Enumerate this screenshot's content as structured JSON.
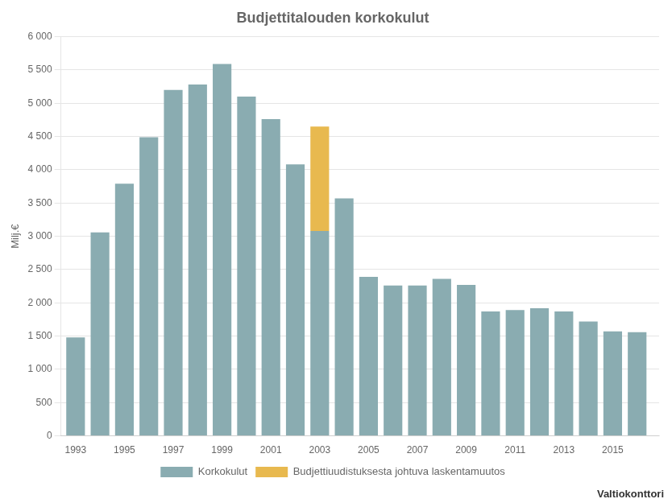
{
  "chart_data": {
    "type": "bar",
    "title": "Budjettitalouden korkokulut",
    "ylabel": "Milj.€",
    "annotations": [
      "Valtiokonttori"
    ],
    "x": [
      1993,
      1994,
      1995,
      1996,
      1997,
      1998,
      1999,
      2000,
      2001,
      2002,
      2003,
      2004,
      2005,
      2006,
      2007,
      2008,
      2009,
      2010,
      2011,
      2012,
      2013,
      2014,
      2015,
      2016
    ],
    "series": [
      {
        "name": "Korkokulut",
        "color": "#8aacb1",
        "values": [
          1480,
          3060,
          3790,
          4490,
          5200,
          5280,
          5590,
          5100,
          4760,
          4080,
          3080,
          3570,
          2390,
          2260,
          2260,
          2360,
          2270,
          1870,
          1890,
          1920,
          1870,
          1720,
          1570,
          1560
        ]
      },
      {
        "name": "Budjettiuudistuksesta johtuva laskentamuutos",
        "color": "#e8b94f",
        "values": [
          0,
          0,
          0,
          0,
          0,
          0,
          0,
          0,
          0,
          0,
          1570,
          0,
          0,
          0,
          0,
          0,
          0,
          0,
          0,
          0,
          0,
          0,
          0,
          0
        ]
      }
    ],
    "stacked": true,
    "xlim": [
      1992.4,
      2016.9
    ],
    "xticks": [
      1993,
      1995,
      1997,
      1999,
      2001,
      2003,
      2005,
      2007,
      2009,
      2011,
      2013,
      2015
    ],
    "ylim": [
      0,
      6000
    ],
    "yticks": [
      0,
      500,
      {
        "value": 1000,
        "label": "1 000"
      },
      {
        "value": 1500,
        "label": "1 500"
      },
      {
        "value": 2000,
        "label": "2 000"
      },
      {
        "value": 2500,
        "label": "2 500"
      },
      {
        "value": 3000,
        "label": "3 000"
      },
      {
        "value": 3500,
        "label": "3 500"
      },
      {
        "value": 4000,
        "label": "4 000"
      },
      {
        "value": 4500,
        "label": "4 500"
      },
      {
        "value": 5000,
        "label": "5 000"
      },
      {
        "value": 5500,
        "label": "5 500"
      },
      {
        "value": 6000,
        "label": "6 000"
      }
    ],
    "grid": true,
    "legend": "bottom"
  }
}
